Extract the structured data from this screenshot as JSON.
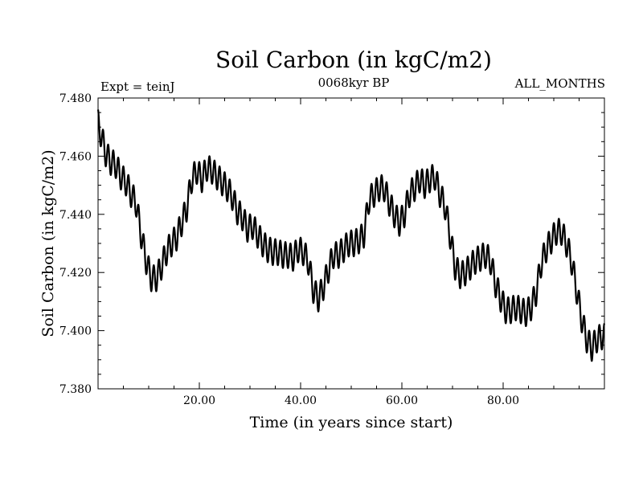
{
  "chart_data": {
    "type": "line",
    "title": "Soil Carbon (in kgC/m2)",
    "subtitle_left": "Expt = teinJ",
    "subtitle_center": "0068kyr BP",
    "subtitle_right": "ALL_MONTHS",
    "xlabel": "Time (in years since start)",
    "ylabel": "Soil Carbon (in kgC/m2)",
    "xlim": [
      0,
      100
    ],
    "ylim": [
      7.38,
      7.48
    ],
    "x_ticks": [
      20,
      40,
      60,
      80
    ],
    "x_tick_labels": [
      "20.00",
      "40.00",
      "60.00",
      "80.00"
    ],
    "y_ticks": [
      7.38,
      7.4,
      7.42,
      7.44,
      7.46,
      7.48
    ],
    "y_tick_labels": [
      "7.380",
      "7.400",
      "7.420",
      "7.440",
      "7.460",
      "7.480"
    ],
    "grid": false,
    "line_color": "#000000",
    "seasonal_amplitude": 0.0045,
    "series": [
      {
        "name": "Soil Carbon",
        "description": "annual means (seasonal cycle superimposed)",
        "x": [
          0.5,
          1.5,
          2.5,
          3.5,
          4.5,
          5.5,
          6.5,
          7.5,
          8.5,
          9.5,
          10.5,
          11.5,
          12.5,
          13.5,
          14.5,
          15.5,
          16.5,
          17.5,
          18.5,
          19.5,
          20.5,
          21.5,
          22.5,
          23.5,
          24.5,
          25.5,
          26.5,
          27.5,
          28.5,
          29.5,
          30.5,
          31.5,
          32.5,
          33.5,
          34.5,
          35.5,
          36.5,
          37.5,
          38.5,
          39.5,
          40.5,
          41.5,
          42.5,
          43.5,
          44.5,
          45.5,
          46.5,
          47.5,
          48.5,
          49.5,
          50.5,
          51.5,
          52.5,
          53.5,
          54.5,
          55.5,
          56.5,
          57.5,
          58.5,
          59.5,
          60.5,
          61.5,
          62.5,
          63.5,
          64.5,
          65.5,
          66.5,
          67.5,
          68.5,
          69.5,
          70.5,
          71.5,
          72.5,
          73.5,
          74.5,
          75.5,
          76.5,
          77.5,
          78.5,
          79.5,
          80.5,
          81.5,
          82.5,
          83.5,
          84.5,
          85.5,
          86.5,
          87.5,
          88.5,
          89.5,
          90.5,
          91.5,
          92.5,
          93.5,
          94.5,
          95.5,
          96.5,
          97.5,
          98.5,
          99.5
        ],
        "y": [
          7.468,
          7.461,
          7.458,
          7.457,
          7.453,
          7.451,
          7.447,
          7.444,
          7.433,
          7.424,
          7.418,
          7.418,
          7.422,
          7.427,
          7.43,
          7.432,
          7.437,
          7.442,
          7.452,
          7.455,
          7.452,
          7.456,
          7.455,
          7.453,
          7.451,
          7.449,
          7.446,
          7.441,
          7.439,
          7.435,
          7.436,
          7.433,
          7.43,
          7.428,
          7.427,
          7.427,
          7.426,
          7.426,
          7.425,
          7.428,
          7.427,
          7.424,
          7.414,
          7.411,
          7.415,
          7.421,
          7.426,
          7.426,
          7.428,
          7.43,
          7.43,
          7.431,
          7.433,
          7.445,
          7.447,
          7.449,
          7.449,
          7.444,
          7.44,
          7.437,
          7.44,
          7.447,
          7.449,
          7.452,
          7.45,
          7.452,
          7.453,
          7.447,
          7.443,
          7.433,
          7.422,
          7.419,
          7.42,
          7.422,
          7.424,
          7.425,
          7.426,
          7.424,
          7.416,
          7.411,
          7.407,
          7.407,
          7.408,
          7.407,
          7.406,
          7.408,
          7.413,
          7.423,
          7.428,
          7.431,
          7.434,
          7.434,
          7.43,
          7.424,
          7.414,
          7.404,
          7.397,
          7.394,
          7.397,
          7.398
        ]
      }
    ]
  }
}
